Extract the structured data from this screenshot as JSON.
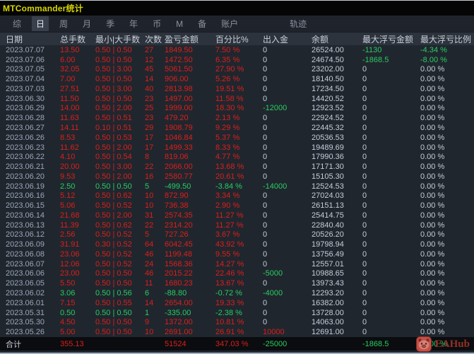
{
  "window": {
    "title": "MTCommander统计"
  },
  "menu": {
    "items": [
      {
        "label": "综",
        "active": false
      },
      {
        "label": "日",
        "active": true
      },
      {
        "label": "周",
        "active": false
      },
      {
        "label": "月",
        "active": false
      },
      {
        "label": "季",
        "active": false
      },
      {
        "label": "年",
        "active": false
      },
      {
        "label": "币",
        "active": false
      },
      {
        "label": "M",
        "active": false
      },
      {
        "label": "备",
        "active": false
      },
      {
        "label": "账户",
        "active": false
      },
      {
        "label": "轨迹",
        "active": false,
        "far": true
      }
    ]
  },
  "colors": {
    "profit_red": "#dc1f1a",
    "loss_green": "#28cd61",
    "plain_text": "#c5cdd8",
    "date_text": "#9aa7b8",
    "title_yellow": "#d6d400",
    "background": "#20262e",
    "header_background": "#2d333d",
    "total_row_background": "#0b0c0f",
    "watermark_red": "#9e352c"
  },
  "table": {
    "headers": [
      "日期",
      "总手数",
      "最小|大手数",
      "次数",
      "盈亏金额",
      "百分比%",
      "出入金",
      "余额",
      "最大浮亏金额",
      "最大浮亏比例"
    ],
    "columns": [
      {
        "key": "date",
        "tone": "date"
      },
      {
        "key": "lots",
        "tone": "row"
      },
      {
        "key": "minmax",
        "tone": "row"
      },
      {
        "key": "count",
        "tone": "row"
      },
      {
        "key": "pnl",
        "tone": "row"
      },
      {
        "key": "pct",
        "tone": "row"
      },
      {
        "key": "flow",
        "tone": "flow"
      },
      {
        "key": "balance",
        "tone": "plain"
      },
      {
        "key": "dd",
        "tone": "dd"
      },
      {
        "key": "dd_pct",
        "tone": "dd"
      }
    ],
    "rows": [
      {
        "date": "2023.07.07",
        "lots": "13.50",
        "minmax": "0.50 | 0.50",
        "count": "27",
        "pnl": "1849.50",
        "pct": "7.50 %",
        "flow": "0",
        "balance": "26524.00",
        "dd": "-1130",
        "dd_pct": "-4.34 %",
        "tone": "red",
        "flow_tone": "plain",
        "dd_tone": "green"
      },
      {
        "date": "2023.07.06",
        "lots": "6.00",
        "minmax": "0.50 | 0.50",
        "count": "12",
        "pnl": "1472.50",
        "pct": "6.35 %",
        "flow": "0",
        "balance": "24674.50",
        "dd": "-1868.5",
        "dd_pct": "-8.00 %",
        "tone": "red",
        "flow_tone": "plain",
        "dd_tone": "green"
      },
      {
        "date": "2023.07.05",
        "lots": "32.05",
        "minmax": "0.50 | 3.00",
        "count": "45",
        "pnl": "5061.50",
        "pct": "27.90 %",
        "flow": "0",
        "balance": "23202.00",
        "dd": "0",
        "dd_pct": "0.00 %",
        "tone": "red",
        "flow_tone": "plain",
        "dd_tone": "plain"
      },
      {
        "date": "2023.07.04",
        "lots": "7.00",
        "minmax": "0.50 | 0.50",
        "count": "14",
        "pnl": "906.00",
        "pct": "5.26 %",
        "flow": "0",
        "balance": "18140.50",
        "dd": "0",
        "dd_pct": "0.00 %",
        "tone": "red",
        "flow_tone": "plain",
        "dd_tone": "plain"
      },
      {
        "date": "2023.07.03",
        "lots": "27.51",
        "minmax": "0.50 | 3.00",
        "count": "40",
        "pnl": "2813.98",
        "pct": "19.51 %",
        "flow": "0",
        "balance": "17234.50",
        "dd": "0",
        "dd_pct": "0.00 %",
        "tone": "red",
        "flow_tone": "plain",
        "dd_tone": "plain"
      },
      {
        "date": "2023.06.30",
        "lots": "11.50",
        "minmax": "0.50 | 0.50",
        "count": "23",
        "pnl": "1497.00",
        "pct": "11.58 %",
        "flow": "0",
        "balance": "14420.52",
        "dd": "0",
        "dd_pct": "0.00 %",
        "tone": "red",
        "flow_tone": "plain",
        "dd_tone": "plain"
      },
      {
        "date": "2023.06.29",
        "lots": "14.00",
        "minmax": "0.50 | 2.00",
        "count": "25",
        "pnl": "1999.00",
        "pct": "18.30 %",
        "flow": "-12000",
        "balance": "12923.52",
        "dd": "0",
        "dd_pct": "0.00 %",
        "tone": "red",
        "flow_tone": "green",
        "dd_tone": "plain"
      },
      {
        "date": "2023.06.28",
        "lots": "11.63",
        "minmax": "0.50 | 0.51",
        "count": "23",
        "pnl": "479.20",
        "pct": "2.13 %",
        "flow": "0",
        "balance": "22924.52",
        "dd": "0",
        "dd_pct": "0.00 %",
        "tone": "red",
        "flow_tone": "plain",
        "dd_tone": "plain"
      },
      {
        "date": "2023.06.27",
        "lots": "14.11",
        "minmax": "0.10 | 0.51",
        "count": "29",
        "pnl": "1908.79",
        "pct": "9.29 %",
        "flow": "0",
        "balance": "22445.32",
        "dd": "0",
        "dd_pct": "0.00 %",
        "tone": "red",
        "flow_tone": "plain",
        "dd_tone": "plain"
      },
      {
        "date": "2023.06.26",
        "lots": "8.53",
        "minmax": "0.50 | 0.53",
        "count": "17",
        "pnl": "1046.84",
        "pct": "5.37 %",
        "flow": "0",
        "balance": "20536.53",
        "dd": "0",
        "dd_pct": "0.00 %",
        "tone": "red",
        "flow_tone": "plain",
        "dd_tone": "plain"
      },
      {
        "date": "2023.06.23",
        "lots": "11.62",
        "minmax": "0.50 | 2.00",
        "count": "17",
        "pnl": "1499.33",
        "pct": "8.33 %",
        "flow": "0",
        "balance": "19489.69",
        "dd": "0",
        "dd_pct": "0.00 %",
        "tone": "red",
        "flow_tone": "plain",
        "dd_tone": "plain"
      },
      {
        "date": "2023.06.22",
        "lots": "4.10",
        "minmax": "0.50 | 0.54",
        "count": "8",
        "pnl": "819.06",
        "pct": "4.77 %",
        "flow": "0",
        "balance": "17990.36",
        "dd": "0",
        "dd_pct": "0.00 %",
        "tone": "red",
        "flow_tone": "plain",
        "dd_tone": "plain"
      },
      {
        "date": "2023.06.21",
        "lots": "20.00",
        "minmax": "0.50 | 3.00",
        "count": "22",
        "pnl": "2066.00",
        "pct": "13.68 %",
        "flow": "0",
        "balance": "17171.30",
        "dd": "0",
        "dd_pct": "0.00 %",
        "tone": "red",
        "flow_tone": "plain",
        "dd_tone": "plain"
      },
      {
        "date": "2023.06.20",
        "lots": "9.53",
        "minmax": "0.50 | 2.00",
        "count": "16",
        "pnl": "2580.77",
        "pct": "20.61 %",
        "flow": "0",
        "balance": "15105.30",
        "dd": "0",
        "dd_pct": "0.00 %",
        "tone": "red",
        "flow_tone": "plain",
        "dd_tone": "plain"
      },
      {
        "date": "2023.06.19",
        "lots": "2.50",
        "minmax": "0.50 | 0.50",
        "count": "5",
        "pnl": "-499.50",
        "pct": "-3.84 %",
        "flow": "-14000",
        "balance": "12524.53",
        "dd": "0",
        "dd_pct": "0.00 %",
        "tone": "green",
        "flow_tone": "green",
        "dd_tone": "plain"
      },
      {
        "date": "2023.06.16",
        "lots": "5.12",
        "minmax": "0.50 | 0.62",
        "count": "10",
        "pnl": "872.90",
        "pct": "3.34 %",
        "flow": "0",
        "balance": "27024.03",
        "dd": "0",
        "dd_pct": "0.00 %",
        "tone": "red",
        "flow_tone": "plain",
        "dd_tone": "plain"
      },
      {
        "date": "2023.06.15",
        "lots": "5.06",
        "minmax": "0.50 | 0.52",
        "count": "10",
        "pnl": "736.38",
        "pct": "2.90 %",
        "flow": "0",
        "balance": "26151.13",
        "dd": "0",
        "dd_pct": "0.00 %",
        "tone": "red",
        "flow_tone": "plain",
        "dd_tone": "plain"
      },
      {
        "date": "2023.06.14",
        "lots": "21.68",
        "minmax": "0.50 | 2.00",
        "count": "31",
        "pnl": "2574.35",
        "pct": "11.27 %",
        "flow": "0",
        "balance": "25414.75",
        "dd": "0",
        "dd_pct": "0.00 %",
        "tone": "red",
        "flow_tone": "plain",
        "dd_tone": "plain"
      },
      {
        "date": "2023.06.13",
        "lots": "11.39",
        "minmax": "0.50 | 0.62",
        "count": "22",
        "pnl": "2314.20",
        "pct": "11.27 %",
        "flow": "0",
        "balance": "22840.40",
        "dd": "0",
        "dd_pct": "0.00 %",
        "tone": "red",
        "flow_tone": "plain",
        "dd_tone": "plain"
      },
      {
        "date": "2023.06.12",
        "lots": "2.56",
        "minmax": "0.50 | 0.52",
        "count": "5",
        "pnl": "727.26",
        "pct": "3.67 %",
        "flow": "0",
        "balance": "20526.20",
        "dd": "0",
        "dd_pct": "0.00 %",
        "tone": "red",
        "flow_tone": "plain",
        "dd_tone": "plain"
      },
      {
        "date": "2023.06.09",
        "lots": "31.91",
        "minmax": "0.30 | 0.52",
        "count": "64",
        "pnl": "6042.45",
        "pct": "43.92 %",
        "flow": "0",
        "balance": "19798.94",
        "dd": "0",
        "dd_pct": "0.00 %",
        "tone": "red",
        "flow_tone": "plain",
        "dd_tone": "plain"
      },
      {
        "date": "2023.06.08",
        "lots": "23.06",
        "minmax": "0.50 | 0.52",
        "count": "46",
        "pnl": "1199.48",
        "pct": "9.55 %",
        "flow": "0",
        "balance": "13756.49",
        "dd": "0",
        "dd_pct": "0.00 %",
        "tone": "red",
        "flow_tone": "plain",
        "dd_tone": "plain"
      },
      {
        "date": "2023.06.07",
        "lots": "12.06",
        "minmax": "0.50 | 0.52",
        "count": "24",
        "pnl": "1568.36",
        "pct": "14.27 %",
        "flow": "0",
        "balance": "12557.01",
        "dd": "0",
        "dd_pct": "0.00 %",
        "tone": "red",
        "flow_tone": "plain",
        "dd_tone": "plain"
      },
      {
        "date": "2023.06.06",
        "lots": "23.00",
        "minmax": "0.50 | 0.50",
        "count": "46",
        "pnl": "2015.22",
        "pct": "22.46 %",
        "flow": "-5000",
        "balance": "10988.65",
        "dd": "0",
        "dd_pct": "0.00 %",
        "tone": "red",
        "flow_tone": "green",
        "dd_tone": "plain"
      },
      {
        "date": "2023.06.05",
        "lots": "5.50",
        "minmax": "0.50 | 0.50",
        "count": "11",
        "pnl": "1680.23",
        "pct": "13.67 %",
        "flow": "0",
        "balance": "13973.43",
        "dd": "0",
        "dd_pct": "0.00 %",
        "tone": "red",
        "flow_tone": "plain",
        "dd_tone": "plain"
      },
      {
        "date": "2023.06.02",
        "lots": "3.06",
        "minmax": "0.50 | 0.56",
        "count": "6",
        "pnl": "-88.80",
        "pct": "-0.72 %",
        "flow": "-4000",
        "balance": "12293.20",
        "dd": "0",
        "dd_pct": "0.00 %",
        "tone": "green",
        "flow_tone": "green",
        "dd_tone": "plain"
      },
      {
        "date": "2023.06.01",
        "lots": "7.15",
        "minmax": "0.50 | 0.55",
        "count": "14",
        "pnl": "2654.00",
        "pct": "19.33 %",
        "flow": "0",
        "balance": "16382.00",
        "dd": "0",
        "dd_pct": "0.00 %",
        "tone": "red",
        "flow_tone": "plain",
        "dd_tone": "plain"
      },
      {
        "date": "2023.05.31",
        "lots": "0.50",
        "minmax": "0.50 | 0.50",
        "count": "1",
        "pnl": "-335.00",
        "pct": "-2.38 %",
        "flow": "0",
        "balance": "13728.00",
        "dd": "0",
        "dd_pct": "0.00 %",
        "tone": "green",
        "flow_tone": "plain",
        "dd_tone": "plain"
      },
      {
        "date": "2023.05.30",
        "lots": "4.50",
        "minmax": "0.50 | 0.50",
        "count": "9",
        "pnl": "1372.00",
        "pct": "10.81 %",
        "flow": "0",
        "balance": "14063.00",
        "dd": "0",
        "dd_pct": "0.00 %",
        "tone": "red",
        "flow_tone": "plain",
        "dd_tone": "plain"
      },
      {
        "date": "2023.05.26",
        "lots": "5.00",
        "minmax": "0.50 | 0.50",
        "count": "10",
        "pnl": "2691.00",
        "pct": "26.91 %",
        "flow": "10000",
        "balance": "12691.00",
        "dd": "0",
        "dd_pct": "0.00 %",
        "tone": "red",
        "flow_tone": "red",
        "dd_tone": "plain"
      }
    ],
    "total": {
      "label": "合计",
      "lots": "355.13",
      "minmax": "",
      "count": "",
      "pnl": "51524",
      "pct": "347.03 %",
      "flow": "-25000",
      "balance": "",
      "dd": "-1868.5",
      "dd_pct": "-8.00 %"
    }
  },
  "watermark": {
    "label": "EAHub"
  }
}
